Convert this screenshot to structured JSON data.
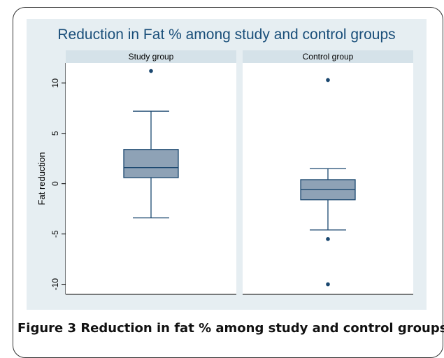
{
  "chart_data": {
    "type": "box",
    "title": "Reduction in Fat % among study and control groups",
    "ylabel": "Fat reduction",
    "ylim": [
      -11,
      12
    ],
    "yticks": [
      10,
      5,
      0,
      -5,
      -10
    ],
    "ytick_labels": [
      "10",
      "5",
      "0",
      "-5",
      "-10"
    ],
    "grid": false,
    "colors": {
      "box_fill": "#8ea2b6",
      "box_line": "#1a476f",
      "point": "#1a476f",
      "panel_header": "#d5e2e9",
      "plot_bg": "#e6eef2",
      "title": "#1a4f7a"
    },
    "panels": [
      {
        "name": "Study group",
        "lower_whisker": -3.4,
        "q1": 0.6,
        "median": 1.6,
        "q3": 3.4,
        "upper_whisker": 7.2,
        "outliers": [
          11.2
        ]
      },
      {
        "name": "Control group",
        "lower_whisker": -4.6,
        "q1": -1.6,
        "median": -0.6,
        "q3": 0.4,
        "upper_whisker": 1.5,
        "outliers": [
          10.3,
          -5.5,
          -10.0
        ]
      }
    ]
  },
  "caption": {
    "label": "Figure 3",
    "text": " Reduction in fat % among study and control groups."
  }
}
